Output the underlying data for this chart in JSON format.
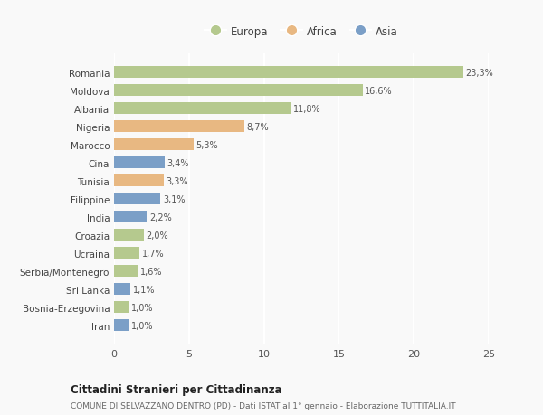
{
  "countries": [
    "Romania",
    "Moldova",
    "Albania",
    "Nigeria",
    "Marocco",
    "Cina",
    "Tunisia",
    "Filippine",
    "India",
    "Croazia",
    "Ucraina",
    "Serbia/Montenegro",
    "Sri Lanka",
    "Bosnia-Erzegovina",
    "Iran"
  ],
  "values": [
    23.3,
    16.6,
    11.8,
    8.7,
    5.3,
    3.4,
    3.3,
    3.1,
    2.2,
    2.0,
    1.7,
    1.6,
    1.1,
    1.0,
    1.0
  ],
  "labels": [
    "23,3%",
    "16,6%",
    "11,8%",
    "8,7%",
    "5,3%",
    "3,4%",
    "3,3%",
    "3,1%",
    "2,2%",
    "2,0%",
    "1,7%",
    "1,6%",
    "1,1%",
    "1,0%",
    "1,0%"
  ],
  "continents": [
    "Europa",
    "Europa",
    "Europa",
    "Africa",
    "Africa",
    "Asia",
    "Africa",
    "Asia",
    "Asia",
    "Europa",
    "Europa",
    "Europa",
    "Asia",
    "Europa",
    "Asia"
  ],
  "continent_colors": {
    "Europa": "#b5c98e",
    "Africa": "#e8b882",
    "Asia": "#7b9fc7"
  },
  "title": "Cittadini Stranieri per Cittadinanza",
  "subtitle": "COMUNE DI SELVAZZANO DENTRO (PD) - Dati ISTAT al 1° gennaio - Elaborazione TUTTITALIA.IT",
  "xlim": [
    0,
    25
  ],
  "xticks": [
    0,
    5,
    10,
    15,
    20,
    25
  ],
  "background_color": "#f9f9f9",
  "grid_color": "#ffffff",
  "bar_height": 0.65
}
